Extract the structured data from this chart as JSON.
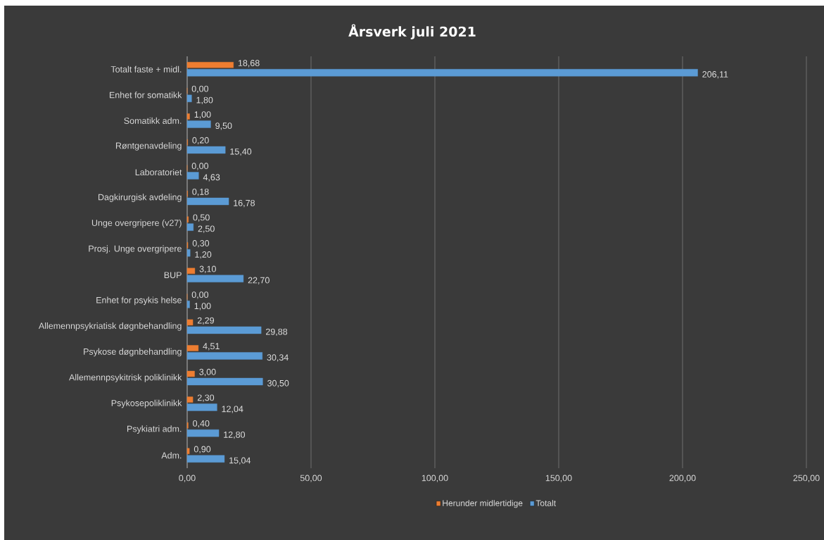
{
  "chart_data": {
    "type": "bar",
    "orientation": "horizontal",
    "title": "Årsverk juli 2021",
    "categories": [
      "Totalt faste + midl.",
      "Enhet for somatikk",
      "Somatikk adm.",
      "Røntgenavdeling",
      "Laboratoriet",
      "Dagkirurgisk avdeling",
      "Unge overgripere (v27)",
      "Prosj. Unge overgripere",
      "BUP",
      "Enhet for psykis helse",
      "Allemennpsykriatisk døgnbehandling",
      "Psykose døgnbehandling",
      "Allemennpsykitrisk poliklinikk",
      "Psykosepoliklinikk",
      "Psykiatri adm.",
      "Adm."
    ],
    "series": [
      {
        "name": "Herunder midlertidige",
        "color": "#ed7d31",
        "values": [
          18.68,
          0.0,
          1.0,
          0.2,
          0.0,
          0.18,
          0.5,
          0.3,
          3.1,
          0.0,
          2.29,
          4.51,
          3.0,
          2.3,
          0.4,
          0.9
        ],
        "value_labels": [
          "18,68",
          "0,00",
          "1,00",
          "0,20",
          "0,00",
          "0,18",
          "0,50",
          "0,30",
          "3,10",
          "0,00",
          "2,29",
          "4,51",
          "3,00",
          "2,30",
          "0,40",
          "0,90"
        ]
      },
      {
        "name": "Totalt",
        "color": "#5b9bd5",
        "values": [
          206.11,
          1.8,
          9.5,
          15.4,
          4.63,
          16.78,
          2.5,
          1.2,
          22.7,
          1.0,
          29.88,
          30.34,
          30.5,
          12.04,
          12.8,
          15.04
        ],
        "value_labels": [
          "206,11",
          "1,80",
          "9,50",
          "15,40",
          "4,63",
          "16,78",
          "2,50",
          "1,20",
          "22,70",
          "1,00",
          "29,88",
          "30,34",
          "30,50",
          "12,04",
          "12,80",
          "15,04"
        ]
      }
    ],
    "xlim": [
      0,
      250
    ],
    "xticks": [
      {
        "value": 0,
        "label": "0,00"
      },
      {
        "value": 50,
        "label": "50,00"
      },
      {
        "value": 100,
        "label": "100,00"
      },
      {
        "value": 150,
        "label": "150,00"
      },
      {
        "value": 200,
        "label": "200,00"
      },
      {
        "value": 250,
        "label": "250,00"
      }
    ],
    "grid": "x",
    "legend": "bottom"
  }
}
